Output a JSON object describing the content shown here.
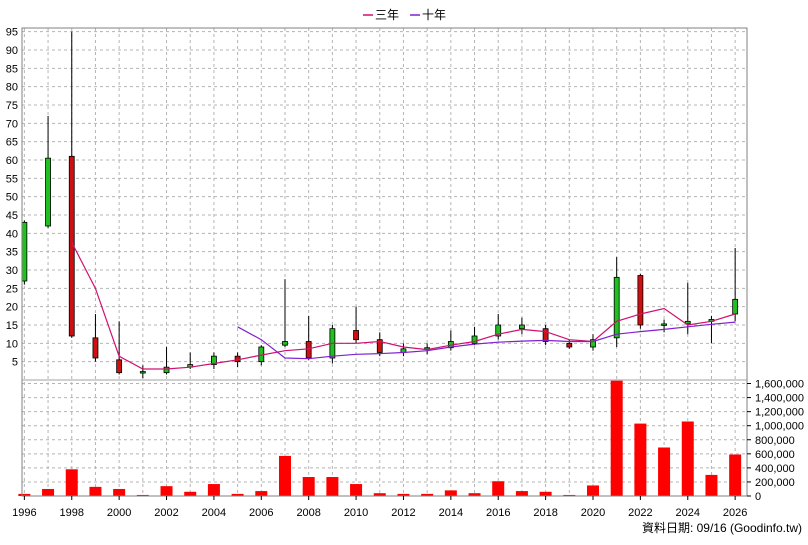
{
  "legend": {
    "items": [
      {
        "label": "三年",
        "color": "#d01070"
      },
      {
        "label": "十年",
        "color": "#8020d0"
      }
    ]
  },
  "footer": {
    "text": "資料日期: 09/16 (Goodinfo.tw)"
  },
  "chart_data": [
    {
      "type": "candlestick",
      "x_tick_labels": [
        "1996",
        "1998",
        "2000",
        "2002",
        "2004",
        "2006",
        "2008",
        "2010",
        "2012",
        "2014",
        "2016",
        "2018",
        "2020",
        "2022",
        "2024",
        "2026"
      ],
      "y_tick_labels": [
        "5",
        "10",
        "15",
        "20",
        "25",
        "30",
        "35",
        "40",
        "45",
        "50",
        "55",
        "60",
        "65",
        "70",
        "75",
        "80",
        "85",
        "90",
        "95"
      ],
      "xlim": [
        1995.9,
        2026.5
      ],
      "ylim": [
        0,
        96
      ],
      "grid": true,
      "up_color": "#20c020",
      "down_color": "#d01010",
      "candles": [
        {
          "year": 1996,
          "open": 27,
          "close": 43,
          "high": 43.5,
          "low": 26
        },
        {
          "year": 1997,
          "open": 42,
          "close": 60.5,
          "high": 72,
          "low": 41.5
        },
        {
          "year": 1998,
          "open": 61,
          "close": 12,
          "high": 95,
          "low": 11.5
        },
        {
          "year": 1999,
          "open": 11.5,
          "close": 6,
          "high": 18,
          "low": 5
        },
        {
          "year": 2000,
          "open": 5.5,
          "close": 2,
          "high": 16,
          "low": 1.5
        },
        {
          "year": 2001,
          "open": 2,
          "close": 2.3,
          "high": 4,
          "low": 0.5
        },
        {
          "year": 2002,
          "open": 2,
          "close": 3.5,
          "high": 9,
          "low": 1.5
        },
        {
          "year": 2003,
          "open": 3.5,
          "close": 4.2,
          "high": 7.5,
          "low": 3
        },
        {
          "year": 2004,
          "open": 4.2,
          "close": 6.5,
          "high": 7.5,
          "low": 3
        },
        {
          "year": 2005,
          "open": 6.5,
          "close": 5,
          "high": 7.5,
          "low": 3.5
        },
        {
          "year": 2006,
          "open": 5,
          "close": 9,
          "high": 9.5,
          "low": 4
        },
        {
          "year": 2007,
          "open": 9.5,
          "close": 10.5,
          "high": 27.5,
          "low": 9
        },
        {
          "year": 2008,
          "open": 10.5,
          "close": 6,
          "high": 17.5,
          "low": 5.5
        },
        {
          "year": 2009,
          "open": 6,
          "close": 14,
          "high": 15,
          "low": 4.5
        },
        {
          "year": 2010,
          "open": 13.5,
          "close": 11,
          "high": 20,
          "low": 10
        },
        {
          "year": 2011,
          "open": 11,
          "close": 7.5,
          "high": 13,
          "low": 6.5
        },
        {
          "year": 2012,
          "open": 7.5,
          "close": 8.5,
          "high": 10,
          "low": 6.5
        },
        {
          "year": 2013,
          "open": 8.5,
          "close": 8.8,
          "high": 10,
          "low": 7
        },
        {
          "year": 2014,
          "open": 8.8,
          "close": 10.5,
          "high": 13.5,
          "low": 8
        },
        {
          "year": 2015,
          "open": 10,
          "close": 12,
          "high": 14.5,
          "low": 9.5
        },
        {
          "year": 2016,
          "open": 12,
          "close": 15,
          "high": 18,
          "low": 11
        },
        {
          "year": 2017,
          "open": 14,
          "close": 15,
          "high": 17,
          "low": 12.5
        },
        {
          "year": 2018,
          "open": 14,
          "close": 10.5,
          "high": 15,
          "low": 9.5
        },
        {
          "year": 2019,
          "open": 10,
          "close": 9,
          "high": 11,
          "low": 8.5
        },
        {
          "year": 2020,
          "open": 9,
          "close": 11,
          "high": 12.5,
          "low": 8
        },
        {
          "year": 2021,
          "open": 11.5,
          "close": 28,
          "high": 33.5,
          "low": 9
        },
        {
          "year": 2022,
          "open": 28.5,
          "close": 15,
          "high": 29,
          "low": 14
        },
        {
          "year": 2023,
          "open": 15,
          "close": 15.3,
          "high": 16.5,
          "low": 13
        },
        {
          "year": 2024,
          "open": 15.3,
          "close": 16,
          "high": 26.5,
          "low": 12.5
        },
        {
          "year": 2025,
          "open": 16,
          "close": 16.5,
          "high": 17.5,
          "low": 10
        },
        {
          "year": 2026,
          "open": 18,
          "close": 22,
          "high": 36,
          "low": 16
        }
      ],
      "moving_averages": [
        {
          "name": "三年",
          "color": "#d01070",
          "points": [
            [
              1998,
              37.5
            ],
            [
              1999,
              25
            ],
            [
              2000,
              6.5
            ],
            [
              2001,
              3
            ],
            [
              2002,
              3
            ],
            [
              2003,
              3.5
            ],
            [
              2004,
              4.5
            ],
            [
              2005,
              5.5
            ],
            [
              2006,
              6.8
            ],
            [
              2007,
              8
            ],
            [
              2008,
              8.5
            ],
            [
              2009,
              10
            ],
            [
              2010,
              10
            ],
            [
              2011,
              10.5
            ],
            [
              2012,
              9
            ],
            [
              2013,
              8.3
            ],
            [
              2014,
              9.5
            ],
            [
              2015,
              10.5
            ],
            [
              2016,
              12.5
            ],
            [
              2017,
              13.8
            ],
            [
              2018,
              13.2
            ],
            [
              2019,
              11
            ],
            [
              2020,
              10.5
            ],
            [
              2021,
              16
            ],
            [
              2022,
              18
            ],
            [
              2023,
              19.5
            ],
            [
              2024,
              15
            ],
            [
              2025,
              16
            ],
            [
              2026,
              18
            ]
          ]
        },
        {
          "name": "十年",
          "color": "#8020d0",
          "points": [
            [
              2005,
              14.5
            ],
            [
              2006,
              11
            ],
            [
              2007,
              6
            ],
            [
              2008,
              5.8
            ],
            [
              2009,
              6.5
            ],
            [
              2010,
              7
            ],
            [
              2011,
              7.2
            ],
            [
              2012,
              7.5
            ],
            [
              2013,
              8
            ],
            [
              2014,
              9
            ],
            [
              2015,
              9.8
            ],
            [
              2016,
              10.3
            ],
            [
              2017,
              10.6
            ],
            [
              2018,
              10.8
            ],
            [
              2019,
              10.5
            ],
            [
              2020,
              10.5
            ],
            [
              2021,
              12.5
            ],
            [
              2022,
              13.2
            ],
            [
              2023,
              13.8
            ],
            [
              2024,
              14.5
            ],
            [
              2025,
              15.2
            ],
            [
              2026,
              15.8
            ]
          ]
        }
      ]
    },
    {
      "type": "bar",
      "y_tick_labels": [
        "0",
        "200,000",
        "400,000",
        "600,000",
        "800,000",
        "1,000,000",
        "1,200,000",
        "1,400,000",
        "1,600,000"
      ],
      "ylim": [
        0,
        1650000
      ],
      "bar_color": "#ff0000",
      "grid": true,
      "bars": [
        {
          "year": 1996,
          "value": 30000
        },
        {
          "year": 1997,
          "value": 100000
        },
        {
          "year": 1998,
          "value": 380000
        },
        {
          "year": 1999,
          "value": 130000
        },
        {
          "year": 2000,
          "value": 100000
        },
        {
          "year": 2001,
          "value": 15000
        },
        {
          "year": 2002,
          "value": 140000
        },
        {
          "year": 2003,
          "value": 60000
        },
        {
          "year": 2004,
          "value": 170000
        },
        {
          "year": 2005,
          "value": 30000
        },
        {
          "year": 2006,
          "value": 70000
        },
        {
          "year": 2007,
          "value": 570000
        },
        {
          "year": 2008,
          "value": 270000
        },
        {
          "year": 2009,
          "value": 270000
        },
        {
          "year": 2010,
          "value": 170000
        },
        {
          "year": 2011,
          "value": 40000
        },
        {
          "year": 2012,
          "value": 30000
        },
        {
          "year": 2013,
          "value": 30000
        },
        {
          "year": 2014,
          "value": 80000
        },
        {
          "year": 2015,
          "value": 40000
        },
        {
          "year": 2016,
          "value": 210000
        },
        {
          "year": 2017,
          "value": 70000
        },
        {
          "year": 2018,
          "value": 60000
        },
        {
          "year": 2019,
          "value": 15000
        },
        {
          "year": 2020,
          "value": 150000
        },
        {
          "year": 2021,
          "value": 1640000
        },
        {
          "year": 2022,
          "value": 1030000
        },
        {
          "year": 2023,
          "value": 690000
        },
        {
          "year": 2024,
          "value": 1060000
        },
        {
          "year": 2025,
          "value": 300000
        },
        {
          "year": 2026,
          "value": 590000
        }
      ]
    }
  ]
}
